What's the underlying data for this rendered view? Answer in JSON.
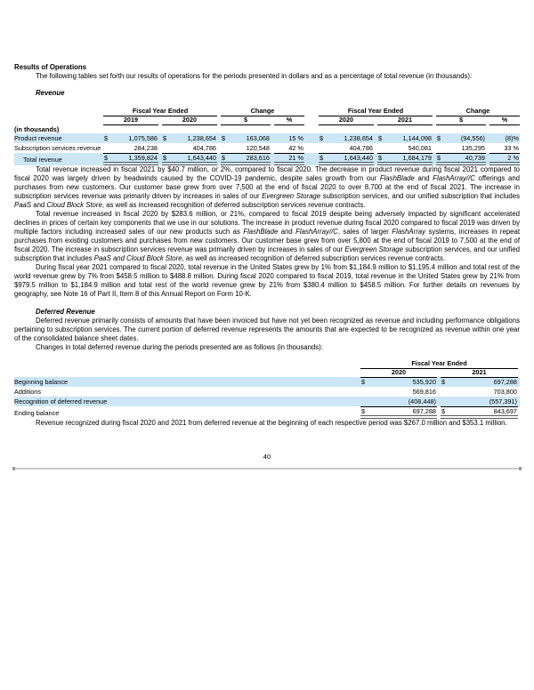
{
  "page_number": "40",
  "colors": {
    "row_highlight": "#cce6f5",
    "table_rule": "#000000",
    "total_double_underline": "#5a5a5a",
    "page_separator": "#cbcbcb"
  },
  "headings": {
    "results_of_operations": "Results of Operations",
    "revenue": "Revenue",
    "deferred_revenue": "Deferred Revenue"
  },
  "paragraphs": {
    "intro": [
      {
        "t": "The following tables set forth our results of operations for the periods presented in dollars and as a percentage of total revenue (in thousands):"
      }
    ],
    "fy2021_vs_2020": [
      {
        "t": "Total revenue increased in fiscal 2021 by $40.7 million, or 2%, compared to fiscal 2020. The decrease in product revenue during fiscal 2021 compared to fiscal 2020 was largely driven by headwinds caused by the COVID-19 pandemic, despite sales growth from our "
      },
      {
        "t": "FlashBlade",
        "i": true
      },
      {
        "t": " and "
      },
      {
        "t": "FlashArray//C",
        "i": true
      },
      {
        "t": " offerings and purchases from new customers. Our customer base grew from over 7,500 at the end of fiscal 2020 to over 8,700 at the end of fiscal 2021. The increase in subscription services revenue was primarily driven by increases in sales of our "
      },
      {
        "t": "Evergreen Storage",
        "i": true
      },
      {
        "t": " subscription services, and our unified subscription that includes "
      },
      {
        "t": "PaaS",
        "i": true
      },
      {
        "t": " and "
      },
      {
        "t": "Cloud Block Store",
        "i": true
      },
      {
        "t": ", as well as increased recognition of deferred subscription services revenue contracts."
      }
    ],
    "fy2020_vs_2019": [
      {
        "t": "Total revenue increased in fiscal 2020 by $283.6 million, or 21%, compared to fiscal 2019 despite being adversely impacted by significant accelerated declines in prices of certain key components that we use in our solutions. The increase in product revenue during fiscal 2020 compared to fiscal 2019 was driven by multiple factors including increased sales of our new products such as "
      },
      {
        "t": "FlashBlade",
        "i": true
      },
      {
        "t": " and "
      },
      {
        "t": "FlashArray//C",
        "i": true
      },
      {
        "t": ", sales of larger "
      },
      {
        "t": "FlashArray",
        "i": true
      },
      {
        "t": " systems, increases in repeat purchases from existing customers and purchases from new customers. Our customer base grew from over 5,800 at the end of fiscal 2019 to 7,500 at the end of fiscal 2020. The increase in subscription services revenue was primarily driven by increases in sales of our "
      },
      {
        "t": "Evergreen Storage",
        "i": true
      },
      {
        "t": " subscription services, and our unified subscription that includes "
      },
      {
        "t": "PaaS and Cloud Block Store",
        "i": true
      },
      {
        "t": ", as well as increased recognition of deferred subscription services revenue contracts."
      }
    ],
    "geography": [
      {
        "t": "During fiscal year 2021 compared to fiscal 2020, total revenue in the United States grew by 1% from $1,184.9 million to $1,195.4 million and total rest of the world revenue grew by 7% from $458.5 million to $488.8 million. During fiscal 2020 compared to fiscal 2019, total revenue in the United States grew by 21% from $979.5 million to $1,184.9 million and total rest of the world revenue grew by 21% from $380.4 million to $458.5 million. For further details on revenues by geography, see Note 16 of Part II, Item 8 of this Annual Report on Form 10-K."
      }
    ],
    "deferred_definition": [
      {
        "t": "Deferred revenue primarily consists of amounts that have been invoiced but have not yet been recognized as revenue and including performance obligations pertaining to subscription services. The current portion of deferred revenue represents the amounts that are expected to be recognized as revenue within one year of the consolidated balance sheet dates."
      }
    ],
    "deferred_changes_intro": [
      {
        "t": "Changes in total deferred revenue during the periods presented are as follows (in thousands):"
      }
    ],
    "revenue_recognized": [
      {
        "t": "Revenue recognized during fiscal 2020 and 2021 from deferred revenue at the beginning of each respective period was $267.0 million and $353.1 million."
      }
    ]
  },
  "revenue_table": {
    "group_headers": [
      "Fiscal Year Ended",
      "Change",
      "Fiscal Year Ended",
      "Change"
    ],
    "col_headers": [
      "2019",
      "2020",
      "$",
      "%",
      "2020",
      "2021",
      "$",
      "%"
    ],
    "units_label": "(in thousands)",
    "rows": [
      {
        "label": "Product revenue",
        "highlight": true,
        "cells": [
          [
            "$",
            "1,075,586"
          ],
          [
            "$",
            "1,238,654"
          ],
          [
            "$",
            "163,068"
          ],
          [
            "",
            "15 %"
          ],
          [
            "$",
            "1,238,654"
          ],
          [
            "$",
            "1,144,098"
          ],
          [
            "$",
            "(94,556)"
          ],
          [
            "",
            "(8)%"
          ]
        ]
      },
      {
        "label": "Subscription services revenue",
        "highlight": false,
        "cells": [
          [
            "",
            "284,238"
          ],
          [
            "",
            "404,786"
          ],
          [
            "",
            "120,548"
          ],
          [
            "",
            "42 %"
          ],
          [
            "",
            "404,786"
          ],
          [
            "",
            "540,081"
          ],
          [
            "",
            "135,295"
          ],
          [
            "",
            "33 %"
          ]
        ]
      },
      {
        "label": "Total revenue",
        "indent": true,
        "highlight": true,
        "total": true,
        "cells": [
          [
            "$",
            "1,359,824"
          ],
          [
            "$",
            "1,643,440"
          ],
          [
            "$",
            "283,616"
          ],
          [
            "",
            "21 %"
          ],
          [
            "$",
            "1,643,440"
          ],
          [
            "$",
            "1,684,179"
          ],
          [
            "$",
            "40,739"
          ],
          [
            "",
            "2 %"
          ]
        ]
      }
    ]
  },
  "deferred_revenue_table": {
    "group_headers": [
      "Fiscal Year Ended"
    ],
    "col_headers": [
      "2020",
      "2021"
    ],
    "rows": [
      {
        "label": "Beginning balance",
        "highlight": true,
        "cells": [
          [
            "$",
            "535,920"
          ],
          [
            "$",
            "697,288"
          ]
        ]
      },
      {
        "label": "Additions",
        "highlight": false,
        "cells": [
          [
            "",
            "569,816"
          ],
          [
            "",
            "703,800"
          ]
        ]
      },
      {
        "label": "Recognition of deferred revenue",
        "highlight": true,
        "cells": [
          [
            "",
            "(408,448)"
          ],
          [
            "",
            "(557,391)"
          ]
        ]
      },
      {
        "label": "Ending balance",
        "highlight": false,
        "total": true,
        "cells": [
          [
            "$",
            "697,288"
          ],
          [
            "$",
            "843,697"
          ]
        ]
      }
    ]
  }
}
